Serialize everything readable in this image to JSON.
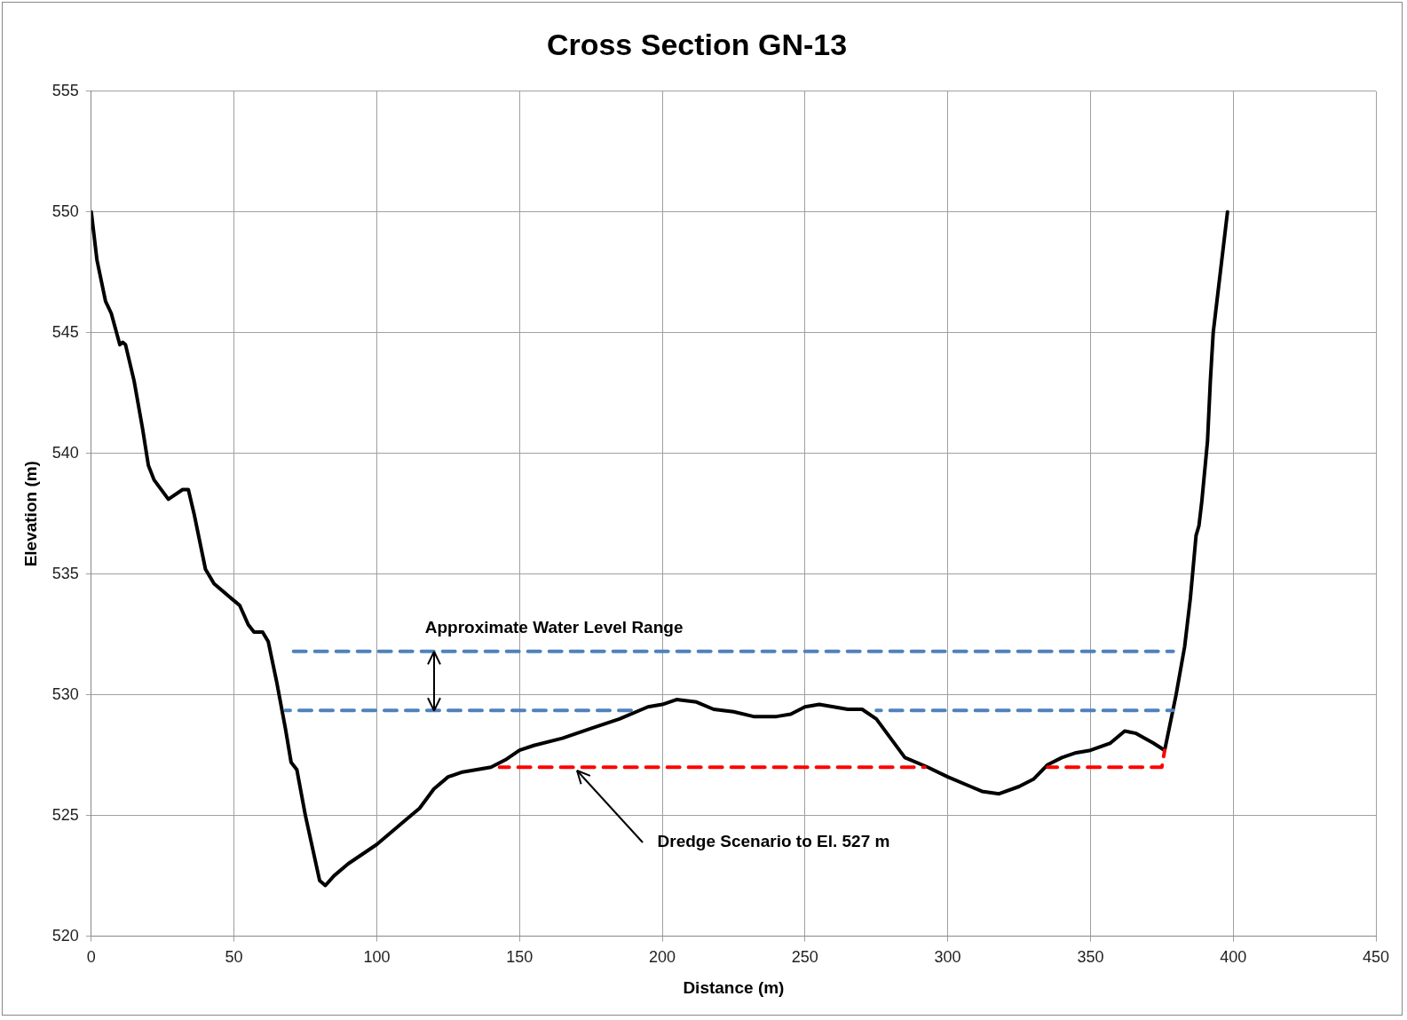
{
  "chart_data": {
    "type": "line",
    "title": "Cross Section GN-13",
    "xlabel": "Distance (m)",
    "ylabel": "Elevation (m)",
    "xlim": [
      0,
      450
    ],
    "xticks": [
      0,
      50,
      100,
      150,
      200,
      250,
      300,
      350,
      400,
      450
    ],
    "ylim": [
      520,
      555
    ],
    "yticks": [
      520,
      525,
      530,
      535,
      540,
      545,
      550,
      555
    ],
    "grid": true,
    "legend": false,
    "marker": "none",
    "series": [
      {
        "color": "#000000",
        "line_style": "solid",
        "x": [
          0,
          2,
          5,
          7,
          10,
          11,
          12,
          15,
          18,
          20,
          22,
          27,
          32,
          34,
          36,
          40,
          43,
          48,
          50,
          52,
          55,
          57,
          60,
          62,
          65,
          68,
          70,
          72,
          75,
          80,
          82,
          85,
          90,
          100,
          110,
          115,
          120,
          125,
          130,
          135,
          140,
          145,
          150,
          155,
          165,
          175,
          185,
          195,
          200,
          205,
          212,
          218,
          225,
          232,
          240,
          245,
          250,
          255,
          260,
          265,
          270,
          275,
          280,
          285,
          293,
          300,
          308,
          312,
          318,
          325,
          330,
          335,
          340,
          345,
          350,
          357,
          362,
          366,
          372,
          376,
          380,
          383,
          385,
          387,
          388,
          389,
          391,
          392,
          393,
          395,
          398
        ],
        "values": [
          550,
          548,
          546.3,
          545.8,
          544.5,
          544.6,
          544.5,
          543,
          541,
          539.5,
          538.9,
          538.1,
          538.5,
          538.5,
          537.5,
          535.2,
          534.6,
          534.1,
          533.9,
          533.7,
          532.9,
          532.6,
          532.6,
          532.2,
          530.5,
          528.6,
          527.2,
          526.9,
          525,
          522.3,
          522.1,
          522.5,
          523,
          523.8,
          524.8,
          525.3,
          526.1,
          526.6,
          526.8,
          526.9,
          527,
          527.3,
          527.7,
          527.9,
          528.2,
          528.6,
          529,
          529.5,
          529.6,
          529.8,
          529.7,
          529.4,
          529.3,
          529.1,
          529.1,
          529.2,
          529.5,
          529.6,
          529.5,
          529.4,
          529.4,
          529,
          528.2,
          527.4,
          527,
          526.6,
          526.2,
          526,
          525.9,
          526.2,
          526.5,
          527.1,
          527.4,
          527.6,
          527.7,
          528,
          528.5,
          528.4,
          528,
          527.7,
          530,
          532,
          534,
          536.6,
          537,
          538,
          540.5,
          543,
          545,
          547,
          550
        ]
      },
      {
        "color": "#4f81bd",
        "line_style": "dashed",
        "x": [
          70,
          379
        ],
        "values": [
          531.8,
          531.8
        ]
      },
      {
        "color": "#4f81bd",
        "line_style": "dashed",
        "x": [
          68,
          192,
          193,
          275,
          379
        ],
        "values": [
          529.35,
          529.35,
          null,
          529.35,
          529.35
        ]
      },
      {
        "color": "#ff0000",
        "line_style": "dashed",
        "x": [
          143,
          292,
          293,
          335,
          375,
          376
        ],
        "values": [
          527,
          527,
          null,
          527,
          527,
          527.7
        ]
      }
    ],
    "annotations": [
      {
        "text": "Approximate Water Level Range",
        "x": 120,
        "y": 531.8
      },
      {
        "text": "Dredge Scenario to El. 527 m",
        "x": 170,
        "y": 527
      }
    ]
  }
}
